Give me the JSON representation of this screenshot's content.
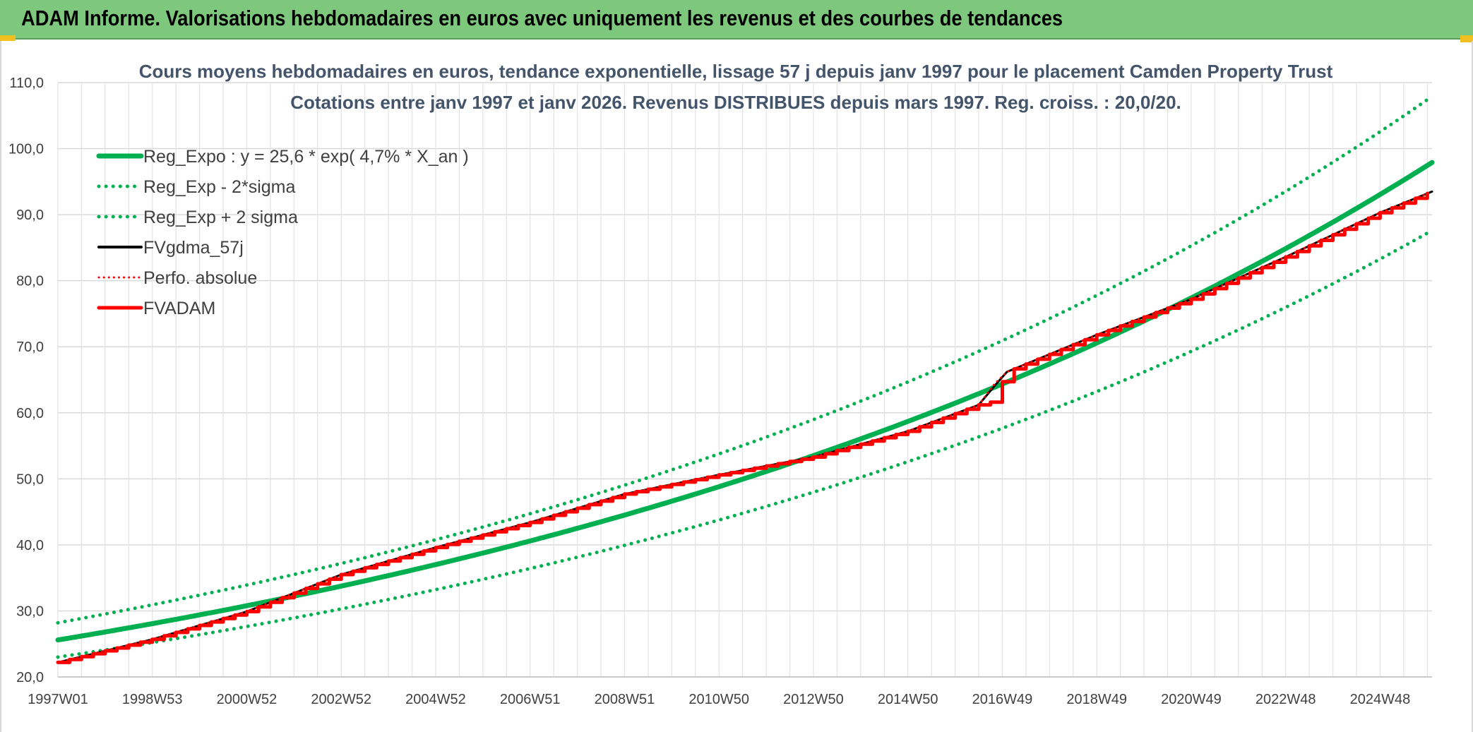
{
  "banner": {
    "title": "ADAM Informe. Valorisations hebdomadaires en euros avec uniquement les revenus et des courbes de tendances"
  },
  "colors": {
    "banner_bg": "#7ec87e",
    "green": "#00b050",
    "red": "#ff0000",
    "black": "#000000",
    "title": "#44546a"
  },
  "chart_data": {
    "type": "line",
    "title": "Cours moyens hebdomadaires en euros, tendance exponentielle, lissage 57 j depuis janv 1997 pour le placement Camden Property Trust",
    "subtitle": "Cotations entre janv 1997 et janv 2026. Revenus DISTRIBUES depuis mars 1997. Reg. croiss. : 20,0/20.",
    "xlabel": "",
    "ylabel": "",
    "x_range": [
      1997.0,
      2026.1
    ],
    "ylim": [
      20,
      110
    ],
    "grid": true,
    "legend_position": "top-left",
    "y_ticks": [
      "20,0",
      "30,0",
      "40,0",
      "50,0",
      "60,0",
      "70,0",
      "80,0",
      "90,0",
      "100,0",
      "110,0"
    ],
    "x_ticks": [
      {
        "label": "1997W01",
        "x": 1997.0
      },
      {
        "label": "1998W53",
        "x": 1999.0
      },
      {
        "label": "2000W52",
        "x": 2001.0
      },
      {
        "label": "2002W52",
        "x": 2003.0
      },
      {
        "label": "2004W52",
        "x": 2005.0
      },
      {
        "label": "2006W51",
        "x": 2007.0
      },
      {
        "label": "2008W51",
        "x": 2009.0
      },
      {
        "label": "2010W50",
        "x": 2011.0
      },
      {
        "label": "2012W50",
        "x": 2013.0
      },
      {
        "label": "2014W50",
        "x": 2015.0
      },
      {
        "label": "2016W49",
        "x": 2017.0
      },
      {
        "label": "2018W49",
        "x": 2019.0
      },
      {
        "label": "2020W49",
        "x": 2021.0
      },
      {
        "label": "2022W48",
        "x": 2023.0
      },
      {
        "label": "2024W48",
        "x": 2025.0
      }
    ],
    "series": [
      {
        "name": "Reg_Expo : y = 25,6 * exp( 4,7% *  X_an )",
        "style": "solid-thick",
        "color": "#00b050",
        "x": [
          1997,
          1999,
          2001,
          2003,
          2005,
          2007,
          2009,
          2011,
          2013,
          2015,
          2017,
          2019,
          2021,
          2023,
          2025,
          2026.1
        ],
        "y": [
          25.6,
          28.0,
          30.8,
          33.6,
          36.9,
          40.4,
          44.3,
          48.6,
          53.2,
          58.4,
          64.0,
          70.2,
          76.9,
          84.4,
          92.6,
          97.9
        ]
      },
      {
        "name": "Reg_Exp - 2*sigma",
        "style": "dotted",
        "color": "#00b050",
        "x": [
          1997,
          1999,
          2001,
          2003,
          2005,
          2007,
          2009,
          2011,
          2013,
          2015,
          2017,
          2019,
          2021,
          2023,
          2025,
          2026.1
        ],
        "y": [
          23.0,
          25.3,
          27.6,
          30.3,
          33.2,
          36.4,
          39.9,
          43.7,
          48.0,
          52.6,
          57.6,
          63.2,
          69.3,
          75.9,
          83.2,
          87.6
        ]
      },
      {
        "name": "Reg_Exp + 2 sigma",
        "style": "dotted",
        "color": "#00b050",
        "x": [
          1997,
          1999,
          2001,
          2003,
          2005,
          2007,
          2009,
          2011,
          2013,
          2015,
          2017,
          2019,
          2021,
          2023,
          2025,
          2026.1
        ],
        "y": [
          28.2,
          30.9,
          33.8,
          37.1,
          40.6,
          44.5,
          48.8,
          53.5,
          58.6,
          64.2,
          70.4,
          77.1,
          84.6,
          92.6,
          101.6,
          107.9
        ]
      },
      {
        "name": "FVgdma_57j",
        "style": "solid",
        "color": "#000000",
        "x": [
          1997,
          1999,
          2001,
          2003,
          2005,
          2007,
          2009,
          2011,
          2013,
          2015,
          2016.5,
          2016.85,
          2017.1,
          2019,
          2021,
          2023,
          2025,
          2026.1
        ],
        "y": [
          22.2,
          25.7,
          29.9,
          35.5,
          39.6,
          43.4,
          47.7,
          50.6,
          53.3,
          57.2,
          61.2,
          64.2,
          66.2,
          71.8,
          77.2,
          83.6,
          90.3,
          93.5
        ]
      },
      {
        "name": "Perfo. absolue",
        "style": "dotted",
        "color": "#ff0000",
        "x": [
          1997,
          1999,
          2001,
          2003,
          2005,
          2007,
          2009,
          2011,
          2013,
          2015,
          2016.5,
          2016.85,
          2017.1,
          2019,
          2021,
          2023,
          2025,
          2026.1
        ],
        "y": [
          22.2,
          25.7,
          29.9,
          35.5,
          39.6,
          43.4,
          47.7,
          50.6,
          53.3,
          57.2,
          61.2,
          64.5,
          66.2,
          71.8,
          77.2,
          83.6,
          90.3,
          93.5
        ]
      },
      {
        "name": "FVADAM",
        "style": "stair-thick",
        "color": "#ff0000",
        "x": [
          1997,
          1999,
          2001,
          2003,
          2005,
          2007,
          2009,
          2011,
          2013,
          2015,
          2016.5,
          2016.8,
          2017.1,
          2019,
          2021,
          2023,
          2025,
          2026.1
        ],
        "y": [
          22.2,
          25.7,
          29.9,
          35.5,
          39.6,
          43.4,
          47.7,
          50.6,
          53.3,
          57.2,
          61.2,
          61.7,
          66.2,
          71.8,
          77.2,
          83.6,
          90.3,
          93.5
        ]
      }
    ]
  }
}
